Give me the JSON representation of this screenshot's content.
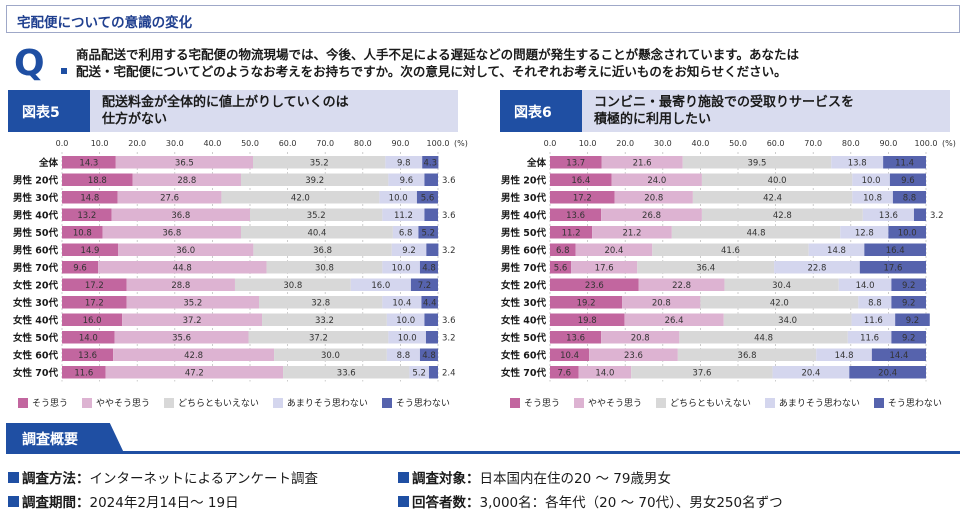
{
  "header": {
    "title": "宅配便についての意識の変化"
  },
  "question": {
    "mark": "Q",
    "line1": "商品配送で利用する宅配便の物流現場では、今後、人手不足による遅延などの問題が発生することが懸念されています。あなたは",
    "line2": "配送・宅配便についてどのようなお考えをお持ちですか。次の意見に対して、それぞれお考えに近いものをお知らせください。"
  },
  "panels": [
    {
      "badge": "図表5",
      "label_line1": "配送料金が全体的に値上がりしていくのは",
      "label_line2": "仕方がない"
    },
    {
      "badge": "図表6",
      "label_line1": "コンビニ・最寄り施設での受取りサービスを",
      "label_line2": "積極的に利用したい"
    }
  ],
  "colors": {
    "c1": "#c2669f",
    "c2": "#ddb3d2",
    "c3": "#d8d8d8",
    "c4": "#d4d6ee",
    "c5": "#5663ad"
  },
  "legend": [
    "そう思う",
    "ややそう思う",
    "どちらともいえない",
    "あまりそう思わない",
    "そう思わない"
  ],
  "chart_data": [
    {
      "type": "bar",
      "stacked": true,
      "orientation": "horizontal",
      "title": "配送料金が全体的に値上がりしていくのは仕方がない",
      "xlim": [
        0,
        100
      ],
      "x_ticks": [
        "0.0",
        "10.0",
        "20.0",
        "30.0",
        "40.0",
        "50.0",
        "60.0",
        "70.0",
        "80.0",
        "90.0",
        "100.0"
      ],
      "x_unit": "(%)",
      "categories": [
        "全体",
        "男性 20代",
        "男性 30代",
        "男性 40代",
        "男性 50代",
        "男性 60代",
        "男性 70代",
        "女性 20代",
        "女性 30代",
        "女性 40代",
        "女性 50代",
        "女性 60代",
        "女性 70代"
      ],
      "series": [
        {
          "name": "そう思う",
          "values": [
            14.3,
            18.8,
            14.8,
            13.2,
            10.8,
            14.9,
            9.6,
            17.2,
            17.2,
            16.0,
            14.0,
            13.6,
            11.6
          ]
        },
        {
          "name": "ややそう思う",
          "values": [
            36.5,
            28.8,
            27.6,
            36.8,
            36.8,
            36.0,
            44.8,
            28.8,
            35.2,
            37.2,
            35.6,
            42.8,
            47.2
          ]
        },
        {
          "name": "どちらともいえない",
          "values": [
            35.2,
            39.2,
            42.0,
            35.2,
            40.4,
            36.8,
            30.8,
            30.8,
            32.8,
            33.2,
            37.2,
            30.0,
            33.6
          ]
        },
        {
          "name": "あまりそう思わない",
          "values": [
            9.8,
            9.6,
            10.0,
            11.2,
            6.8,
            9.2,
            10.0,
            16.0,
            10.4,
            10.0,
            10.0,
            8.8,
            5.2
          ]
        },
        {
          "name": "そう思わない",
          "values": [
            4.3,
            3.6,
            5.6,
            3.6,
            5.2,
            3.2,
            4.8,
            7.2,
            4.4,
            3.6,
            3.2,
            4.8,
            2.4
          ]
        }
      ]
    },
    {
      "type": "bar",
      "stacked": true,
      "orientation": "horizontal",
      "title": "コンビニ・最寄り施設での受取りサービスを積極的に利用したい",
      "xlim": [
        0,
        100
      ],
      "x_ticks": [
        "0.0",
        "10.0",
        "20.0",
        "30.0",
        "40.0",
        "50.0",
        "60.0",
        "70.0",
        "80.0",
        "90.0",
        "100.0"
      ],
      "x_unit": "(%)",
      "categories": [
        "全体",
        "男性 20代",
        "男性 30代",
        "男性 40代",
        "男性 50代",
        "男性 60代",
        "男性 70代",
        "女性 20代",
        "女性 30代",
        "女性 40代",
        "女性 50代",
        "女性 60代",
        "女性 70代"
      ],
      "series": [
        {
          "name": "そう思う",
          "values": [
            13.7,
            16.4,
            17.2,
            13.6,
            11.2,
            6.8,
            5.6,
            23.6,
            19.2,
            19.8,
            13.6,
            10.4,
            7.6
          ]
        },
        {
          "name": "ややそう思う",
          "values": [
            21.6,
            24.0,
            20.8,
            26.8,
            21.2,
            20.4,
            17.6,
            22.8,
            20.8,
            26.4,
            20.8,
            23.6,
            14.0
          ]
        },
        {
          "name": "どちらともいえない",
          "values": [
            39.5,
            40.0,
            42.4,
            42.8,
            44.8,
            41.6,
            36.4,
            30.4,
            42.0,
            34.0,
            44.8,
            36.8,
            37.6
          ]
        },
        {
          "name": "あまりそう思わない",
          "values": [
            13.8,
            10.0,
            10.8,
            13.6,
            12.8,
            14.8,
            22.8,
            14.0,
            8.8,
            11.6,
            11.6,
            14.8,
            20.4
          ]
        },
        {
          "name": "そう思わない",
          "values": [
            11.4,
            9.6,
            8.8,
            3.2,
            10.0,
            16.4,
            17.6,
            9.2,
            9.2,
            9.2,
            9.2,
            14.4,
            20.4
          ]
        }
      ]
    }
  ],
  "survey": {
    "banner": "調査概要",
    "items": [
      {
        "key": "調査方法：",
        "value": "インターネットによるアンケート調査"
      },
      {
        "key": "調査対象：",
        "value": "日本国内在住の20 ～ 79歳男女"
      },
      {
        "key": "調査期間：",
        "value": "2024年2月14日～ 19日"
      },
      {
        "key": "回答者数：",
        "value": "3,000名：各年代（20 ～ 70代）、男女250名ずつ"
      }
    ]
  }
}
